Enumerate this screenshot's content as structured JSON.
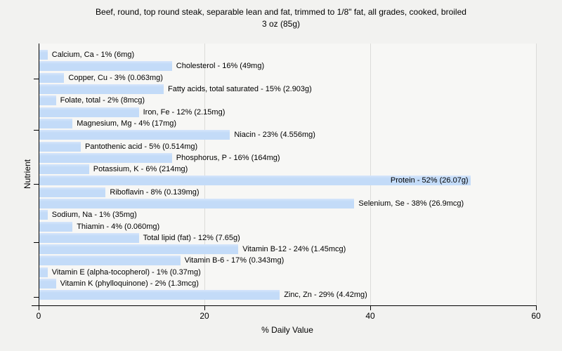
{
  "title": {
    "line1": "Beef, round, top round steak, separable lean and fat, trimmed to 1/8\" fat, all grades, cooked, broiled",
    "line2": "3 oz (85g)"
  },
  "colors": {
    "page_bg": "#f2f2f0",
    "plot_bg": "#f7f7f5",
    "bar_fill": "#c3dbf8",
    "bar_fill_light": "#d6e5fb",
    "gridline": "#dcdcd9",
    "axis": "#000000",
    "text": "#000000"
  },
  "chart_data": {
    "type": "bar",
    "orientation": "horizontal",
    "title": "Beef, round, top round steak, separable lean and fat, trimmed to 1/8\" fat, all grades, cooked, broiled",
    "subtitle": "3 oz (85g)",
    "xlabel": "% Daily Value",
    "ylabel": "Nutrient",
    "xlim": [
      0,
      60
    ],
    "xticks": [
      0,
      20,
      40,
      60
    ],
    "grid": true,
    "legend": false,
    "bars": [
      {
        "nutrient": "Calcium, Ca",
        "percent": 1,
        "amount": "6mg",
        "label": "Calcium, Ca - 1% (6mg)",
        "label_inside": false
      },
      {
        "nutrient": "Cholesterol",
        "percent": 16,
        "amount": "49mg",
        "label": "Cholesterol - 16% (49mg)",
        "label_inside": false
      },
      {
        "nutrient": "Copper, Cu",
        "percent": 3,
        "amount": "0.063mg",
        "label": "Copper, Cu - 3% (0.063mg)",
        "label_inside": false
      },
      {
        "nutrient": "Fatty acids, total saturated",
        "percent": 15,
        "amount": "2.903g",
        "label": "Fatty acids, total saturated - 15% (2.903g)",
        "label_inside": false
      },
      {
        "nutrient": "Folate, total",
        "percent": 2,
        "amount": "8mcg",
        "label": "Folate, total - 2% (8mcg)",
        "label_inside": false
      },
      {
        "nutrient": "Iron, Fe",
        "percent": 12,
        "amount": "2.15mg",
        "label": "Iron, Fe - 12% (2.15mg)",
        "label_inside": false
      },
      {
        "nutrient": "Magnesium, Mg",
        "percent": 4,
        "amount": "17mg",
        "label": "Magnesium, Mg - 4% (17mg)",
        "label_inside": false
      },
      {
        "nutrient": "Niacin",
        "percent": 23,
        "amount": "4.556mg",
        "label": "Niacin - 23% (4.556mg)",
        "label_inside": false
      },
      {
        "nutrient": "Pantothenic acid",
        "percent": 5,
        "amount": "0.514mg",
        "label": "Pantothenic acid - 5% (0.514mg)",
        "label_inside": false
      },
      {
        "nutrient": "Phosphorus, P",
        "percent": 16,
        "amount": "164mg",
        "label": "Phosphorus, P - 16% (164mg)",
        "label_inside": false
      },
      {
        "nutrient": "Potassium, K",
        "percent": 6,
        "amount": "214mg",
        "label": "Potassium, K - 6% (214mg)",
        "label_inside": false
      },
      {
        "nutrient": "Protein",
        "percent": 52,
        "amount": "26.07g",
        "label": "Protein - 52% (26.07g)",
        "label_inside": true
      },
      {
        "nutrient": "Riboflavin",
        "percent": 8,
        "amount": "0.139mg",
        "label": "Riboflavin - 8% (0.139mg)",
        "label_inside": false
      },
      {
        "nutrient": "Selenium, Se",
        "percent": 38,
        "amount": "26.9mcg",
        "label": "Selenium, Se - 38% (26.9mcg)",
        "label_inside": false
      },
      {
        "nutrient": "Sodium, Na",
        "percent": 1,
        "amount": "35mg",
        "label": "Sodium, Na - 1% (35mg)",
        "label_inside": false
      },
      {
        "nutrient": "Thiamin",
        "percent": 4,
        "amount": "0.060mg",
        "label": "Thiamin - 4% (0.060mg)",
        "label_inside": false
      },
      {
        "nutrient": "Total lipid (fat)",
        "percent": 12,
        "amount": "7.65g",
        "label": "Total lipid (fat) - 12% (7.65g)",
        "label_inside": false
      },
      {
        "nutrient": "Vitamin B-12",
        "percent": 24,
        "amount": "1.45mcg",
        "label": "Vitamin B-12 - 24% (1.45mcg)",
        "label_inside": false
      },
      {
        "nutrient": "Vitamin B-6",
        "percent": 17,
        "amount": "0.343mg",
        "label": "Vitamin B-6 - 17% (0.343mg)",
        "label_inside": false
      },
      {
        "nutrient": "Vitamin E (alpha-tocopherol)",
        "percent": 1,
        "amount": "0.37mg",
        "label": "Vitamin E (alpha-tocopherol) - 1% (0.37mg)",
        "label_inside": false
      },
      {
        "nutrient": "Vitamin K (phylloquinone)",
        "percent": 2,
        "amount": "1.3mcg",
        "label": "Vitamin K (phylloquinone) - 2% (1.3mcg)",
        "label_inside": false
      },
      {
        "nutrient": "Zinc, Zn",
        "percent": 29,
        "amount": "4.42mg",
        "label": "Zinc, Zn - 29% (4.42mg)",
        "label_inside": false
      }
    ]
  }
}
